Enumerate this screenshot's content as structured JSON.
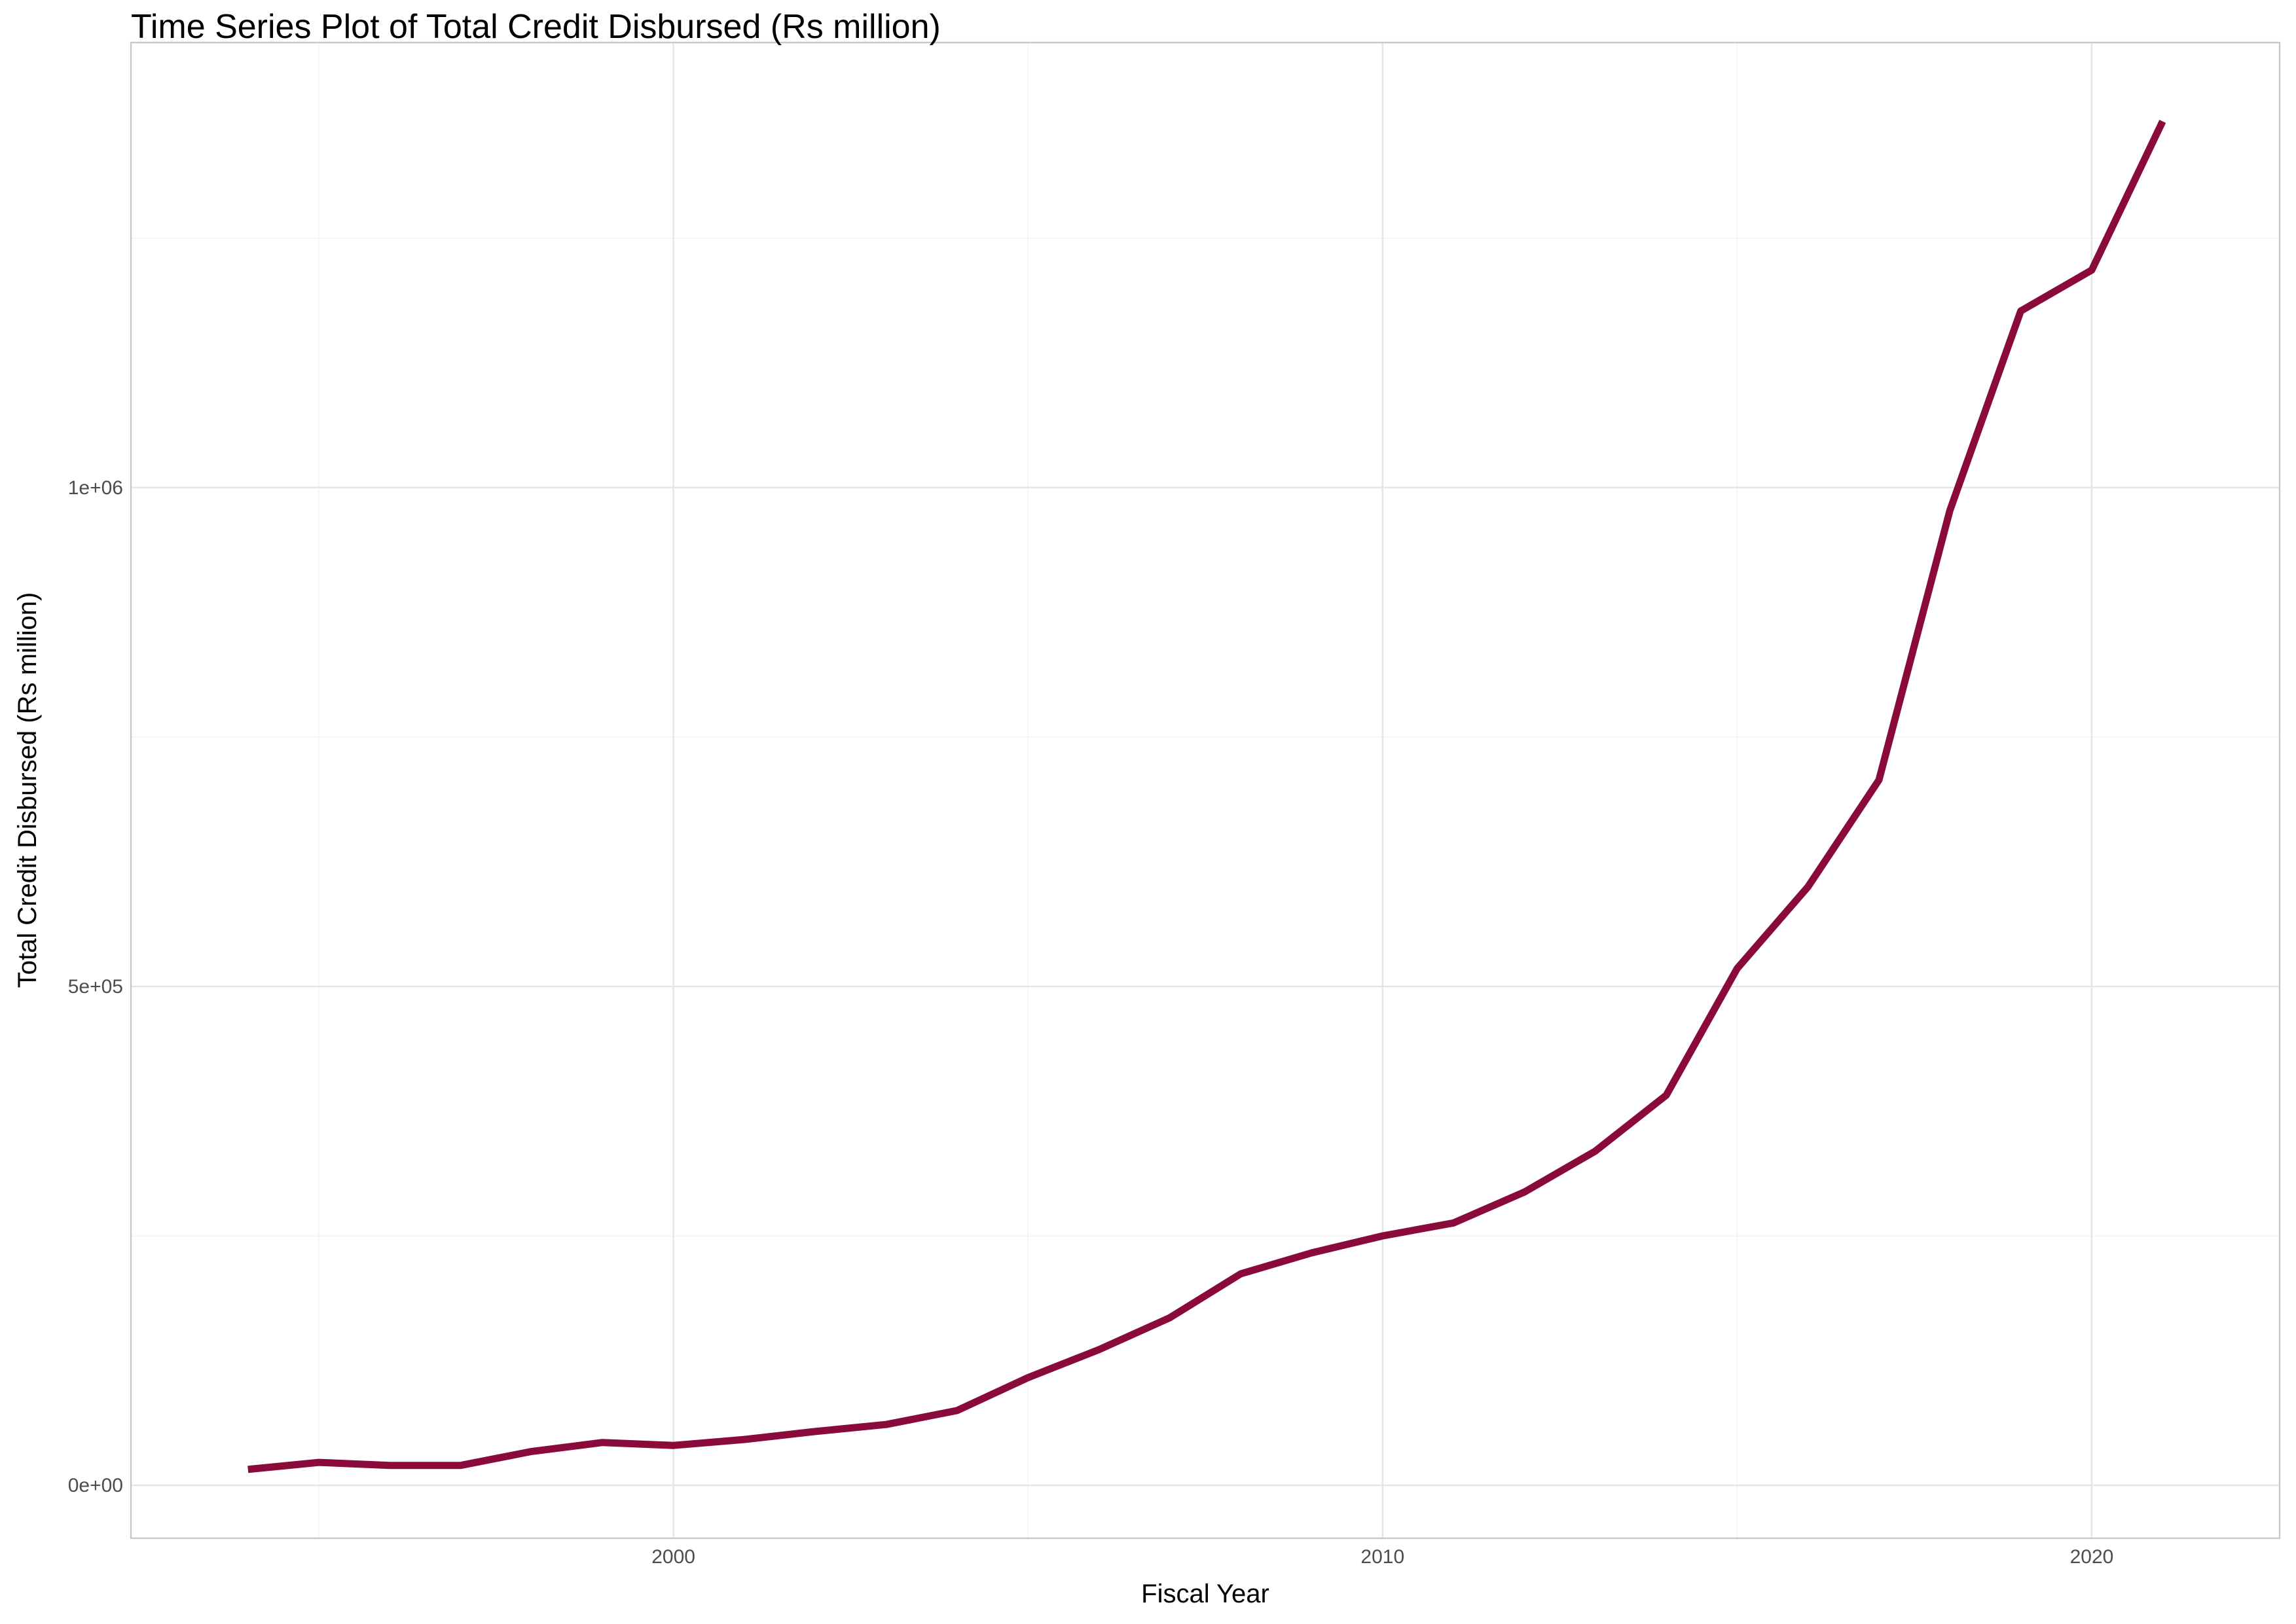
{
  "chart_data": {
    "type": "line",
    "title": "Time Series Plot of Total Credit Disbursed (Rs million)",
    "xlabel": "Fiscal Year",
    "ylabel": "Total Credit Disbursed (Rs million)",
    "xlim": [
      1992.35,
      2022.65
    ],
    "ylim": [
      -53000,
      1446000
    ],
    "x_ticks": [
      2000,
      2010,
      2020
    ],
    "x_tick_labels": [
      "2000",
      "2010",
      "2020"
    ],
    "x_minor_ticks": [
      1995,
      2005,
      2015
    ],
    "y_ticks": [
      0,
      500000,
      1000000
    ],
    "y_tick_labels": [
      "0e+00",
      "5e+05",
      "1e+06"
    ],
    "y_minor_ticks": [
      250000,
      750000,
      1250000
    ],
    "grid": true,
    "legend": "none",
    "line_color": "#8b0a3c",
    "series": [
      {
        "x": [
          1994,
          1995,
          1996,
          1997,
          1998,
          1999,
          2000,
          2001,
          2002,
          2003,
          2004,
          2005,
          2006,
          2007,
          2008,
          2009,
          2010,
          2011,
          2012,
          2013,
          2014,
          2015,
          2016,
          2017,
          2018,
          2019,
          2020,
          2021
        ],
        "values": [
          16000,
          23000,
          20000,
          20000,
          34000,
          43000,
          40000,
          46000,
          54000,
          61000,
          75000,
          108000,
          136000,
          168000,
          212000,
          233000,
          250000,
          263000,
          294000,
          335000,
          391000,
          518000,
          600000,
          707000,
          977000,
          1177000,
          1218000,
          1367000
        ]
      }
    ]
  }
}
